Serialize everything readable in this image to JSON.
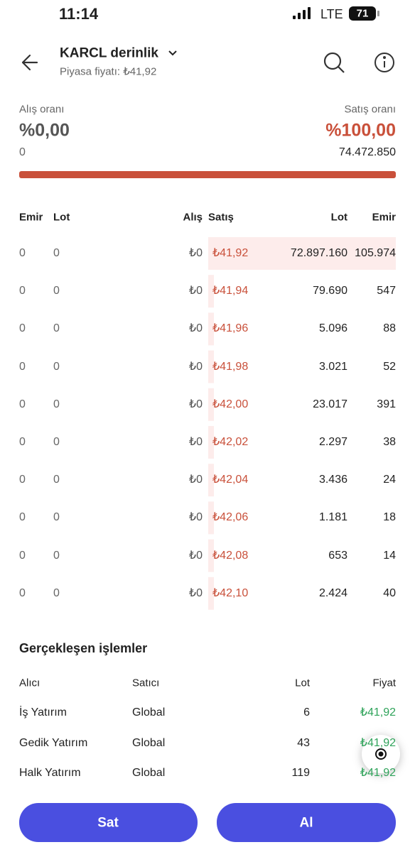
{
  "status_bar": {
    "time": "11:14",
    "network": "LTE",
    "battery": "71"
  },
  "header": {
    "title": "KARCL derinlik",
    "subtitle": "Piyasa fiyatı: ₺41,92"
  },
  "summary": {
    "buy_label": "Alış oranı",
    "buy_ratio": "%0,00",
    "buy_total": "0",
    "sell_label": "Satış oranı",
    "sell_ratio": "%100,00",
    "sell_total": "74.472.850"
  },
  "depth": {
    "columns": [
      "Emir",
      "Lot",
      "Alış",
      "Satış",
      "Lot",
      "Emir"
    ],
    "rows": [
      [
        "0",
        "0",
        "₺0",
        "₺41,92",
        "72.897.160",
        "105.974"
      ],
      [
        "0",
        "0",
        "₺0",
        "₺41,94",
        "79.690",
        "547"
      ],
      [
        "0",
        "0",
        "₺0",
        "₺41,96",
        "5.096",
        "88"
      ],
      [
        "0",
        "0",
        "₺0",
        "₺41,98",
        "3.021",
        "52"
      ],
      [
        "0",
        "0",
        "₺0",
        "₺42,00",
        "23.017",
        "391"
      ],
      [
        "0",
        "0",
        "₺0",
        "₺42,02",
        "2.297",
        "38"
      ],
      [
        "0",
        "0",
        "₺0",
        "₺42,04",
        "3.436",
        "24"
      ],
      [
        "0",
        "0",
        "₺0",
        "₺42,06",
        "1.181",
        "18"
      ],
      [
        "0",
        "0",
        "₺0",
        "₺42,08",
        "653",
        "14"
      ],
      [
        "0",
        "0",
        "₺0",
        "₺42,10",
        "2.424",
        "40"
      ]
    ]
  },
  "trades": {
    "title": "Gerçekleşen işlemler",
    "columns": [
      "Alıcı",
      "Satıcı",
      "Lot",
      "Fiyat"
    ],
    "rows": [
      [
        "İş Yatırım",
        "Global",
        "6",
        "₺41,92"
      ],
      [
        "Gedik Yatırım",
        "Global",
        "43",
        "₺41,92"
      ],
      [
        "Halk Yatırım",
        "Global",
        "119",
        "₺41,92"
      ]
    ]
  },
  "actions": {
    "sell": "Sat",
    "buy": "Al"
  }
}
